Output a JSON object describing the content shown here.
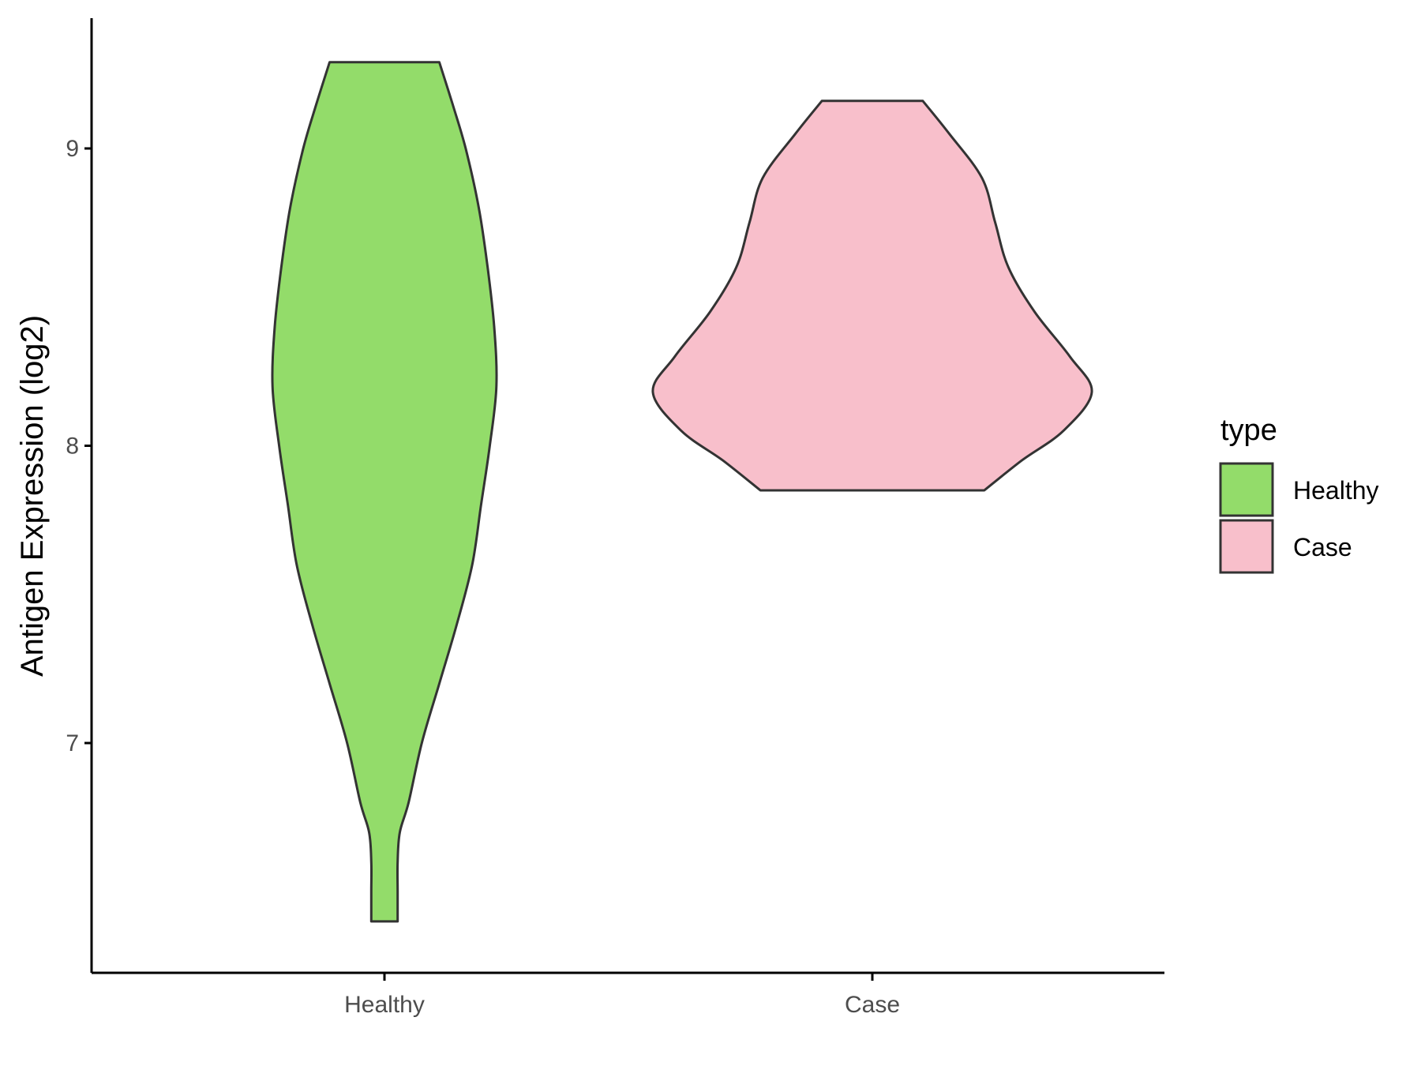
{
  "chart_data": {
    "type": "violin",
    "ylabel": "Antigen Expression (log2)",
    "xlabel": "",
    "categories": [
      "Healthy",
      "Case"
    ],
    "yticks": [
      7,
      8,
      9
    ],
    "ylim": [
      6.25,
      9.43
    ],
    "grid": false,
    "legend": {
      "title": "type",
      "position": "right",
      "entries": [
        "Healthy",
        "Case"
      ]
    },
    "colors": {
      "Healthy": "#93dc6a",
      "Case": "#f8bfcb",
      "outline": "#333333"
    },
    "series": [
      {
        "name": "Healthy",
        "min": 6.4,
        "max": 9.29,
        "profile": [
          [
            6.4,
            0.06
          ],
          [
            6.5,
            0.06
          ],
          [
            6.6,
            0.06
          ],
          [
            6.7,
            0.07
          ],
          [
            6.8,
            0.11
          ],
          [
            7.0,
            0.17
          ],
          [
            7.2,
            0.25
          ],
          [
            7.4,
            0.33
          ],
          [
            7.6,
            0.4
          ],
          [
            7.8,
            0.44
          ],
          [
            8.0,
            0.48
          ],
          [
            8.2,
            0.51
          ],
          [
            8.4,
            0.5
          ],
          [
            8.6,
            0.47
          ],
          [
            8.8,
            0.43
          ],
          [
            9.0,
            0.37
          ],
          [
            9.15,
            0.31
          ],
          [
            9.29,
            0.25
          ]
        ]
      },
      {
        "name": "Case",
        "min": 7.85,
        "max": 9.16,
        "profile": [
          [
            7.85,
            0.51
          ],
          [
            7.95,
            0.68
          ],
          [
            8.05,
            0.87
          ],
          [
            8.18,
            1.0
          ],
          [
            8.3,
            0.9
          ],
          [
            8.45,
            0.74
          ],
          [
            8.6,
            0.62
          ],
          [
            8.75,
            0.56
          ],
          [
            8.9,
            0.5
          ],
          [
            9.05,
            0.35
          ],
          [
            9.16,
            0.23
          ]
        ]
      }
    ]
  }
}
